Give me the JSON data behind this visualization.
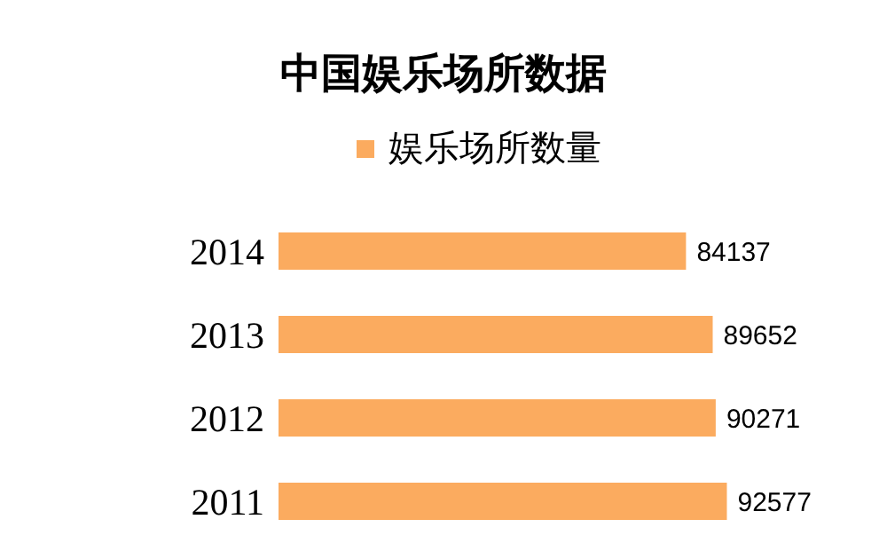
{
  "chart_data": {
    "type": "bar",
    "orientation": "horizontal",
    "title": "中国娱乐场所数据",
    "categories": [
      "2014",
      "2013",
      "2012",
      "2011"
    ],
    "series": [
      {
        "name": "娱乐场所数量",
        "color": "#fbab5f",
        "values": [
          84137,
          89652,
          90271,
          92577
        ]
      }
    ],
    "tick_labels": "y",
    "data_labels": true,
    "legend": "top",
    "grid": false
  }
}
